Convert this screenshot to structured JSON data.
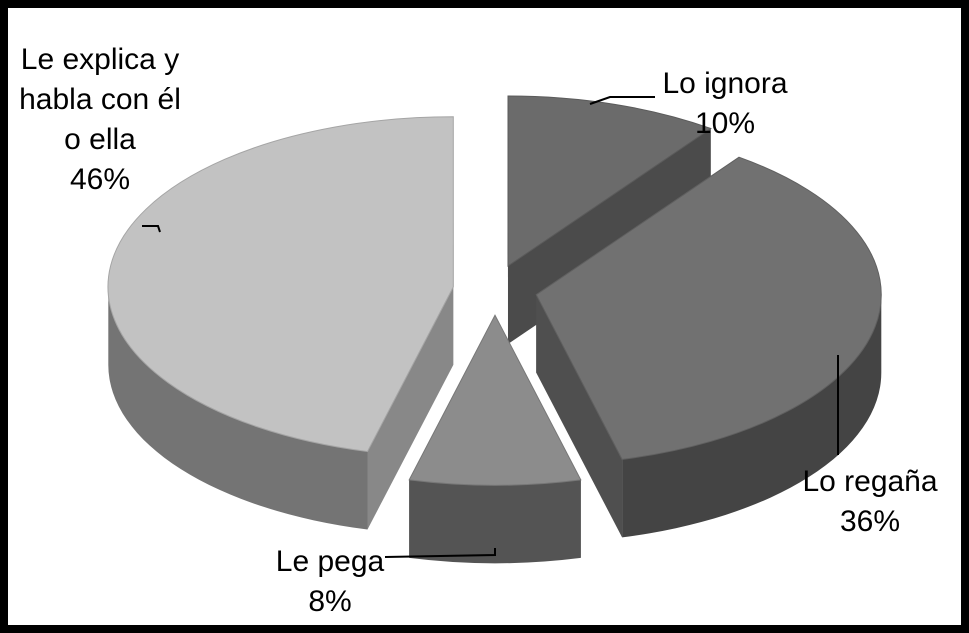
{
  "chart_data": {
    "type": "pie3d",
    "categories": [
      "Lo ignora",
      "Lo regaña",
      "Le pega",
      "Le explica y habla con él o ella"
    ],
    "values": [
      10,
      36,
      8,
      46
    ],
    "value_labels": [
      "10%",
      "36%",
      "8%",
      "46%"
    ],
    "colors": [
      "#6b6b6b",
      "#717171",
      "#8c8c8c",
      "#c2c2c2"
    ]
  }
}
